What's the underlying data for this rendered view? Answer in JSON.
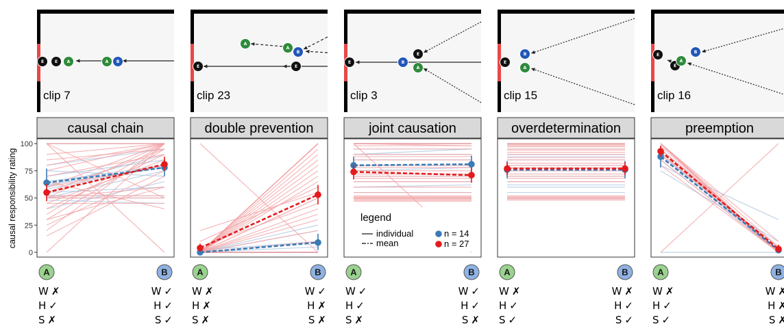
{
  "y_axis_label": "causal responsibility rating",
  "y_ticks": [
    "0",
    "25",
    "50",
    "75",
    "100"
  ],
  "colors": {
    "red": "#e41a1c",
    "red_light": "#f2a0a3",
    "blue": "#3a7bb5",
    "blue_light": "#a9c4e0",
    "ball_green": "#2e8b3a",
    "ball_blue": "#2157b8",
    "badge_green": "#9ad28f",
    "badge_blue": "#8fb2e3",
    "wall_red": "#e84848",
    "strip_bg": "#d9d9d9"
  },
  "legend": {
    "title": "legend",
    "individual": "individual",
    "mean": "mean",
    "n_blue": "n = 14",
    "n_red": "n = 27"
  },
  "panels": [
    {
      "clip": "clip 7",
      "strip": "causal chain",
      "balls": [
        {
          "c": "k",
          "l": "E"
        },
        {
          "c": "k",
          "l": "E"
        },
        {
          "c": "g",
          "l": "A"
        },
        {
          "c": "g",
          "l": "A"
        },
        {
          "c": "b",
          "l": "B"
        }
      ],
      "rows": [
        {
          "a": "W",
          "am": "✗",
          "b": "W",
          "bm": "✓"
        },
        {
          "a": "H",
          "am": "✓",
          "b": "H",
          "bm": "✓"
        },
        {
          "a": "S",
          "am": "✗",
          "b": "S",
          "bm": "✓"
        }
      ]
    },
    {
      "clip": "clip 23",
      "strip": "double prevention",
      "balls": [
        {
          "c": "g",
          "l": "A"
        },
        {
          "c": "g",
          "l": "A"
        },
        {
          "c": "b",
          "l": "B"
        },
        {
          "c": "k",
          "l": "E"
        },
        {
          "c": "k",
          "l": "E"
        }
      ],
      "rows": [
        {
          "a": "W",
          "am": "✗",
          "b": "W",
          "bm": "✓"
        },
        {
          "a": "H",
          "am": "✗",
          "b": "H",
          "bm": "✗"
        },
        {
          "a": "S",
          "am": "✗",
          "b": "S",
          "bm": "✗"
        }
      ]
    },
    {
      "clip": "clip 3",
      "strip": "joint causation",
      "balls": [
        {
          "c": "k",
          "l": "E"
        },
        {
          "c": "k",
          "l": "E"
        },
        {
          "c": "g",
          "l": "A"
        },
        {
          "c": "b",
          "l": "B"
        }
      ],
      "rows": [
        {
          "a": "W",
          "am": "✓",
          "b": "W",
          "bm": "✓"
        },
        {
          "a": "H",
          "am": "✓",
          "b": "H",
          "bm": "✓"
        },
        {
          "a": "S",
          "am": "✗",
          "b": "S",
          "bm": "✗"
        }
      ]
    },
    {
      "clip": "clip 15",
      "strip": "overdetermination",
      "balls": [
        {
          "c": "k",
          "l": "E"
        },
        {
          "c": "b",
          "l": "B"
        },
        {
          "c": "g",
          "l": "A"
        }
      ],
      "rows": [
        {
          "a": "W",
          "am": "✗",
          "b": "W",
          "bm": "✗"
        },
        {
          "a": "H",
          "am": "✓",
          "b": "H",
          "bm": "✓"
        },
        {
          "a": "S",
          "am": "✓",
          "b": "S",
          "bm": "✓"
        }
      ]
    },
    {
      "clip": "clip 16",
      "strip": "preemption",
      "balls": [
        {
          "c": "k",
          "l": "E"
        },
        {
          "c": "k",
          "l": "E"
        },
        {
          "c": "g",
          "l": "A"
        },
        {
          "c": "b",
          "l": "B"
        }
      ],
      "rows": [
        {
          "a": "W",
          "am": "✗",
          "b": "W",
          "bm": "✗"
        },
        {
          "a": "H",
          "am": "✓",
          "b": "H",
          "bm": "✗"
        },
        {
          "a": "S",
          "am": "✓",
          "b": "S",
          "bm": "✗"
        }
      ]
    }
  ],
  "chart_data": {
    "type": "line",
    "ylabel": "causal responsibility rating",
    "ylim": [
      0,
      100
    ],
    "categories": [
      "A",
      "B"
    ],
    "panels": [
      {
        "name": "causal chain",
        "series": [
          {
            "name": "n = 14",
            "mean": [
              64,
              78
            ],
            "ci": [
              [
                52,
                77
              ],
              [
                70,
                86
              ]
            ]
          },
          {
            "name": "n = 27",
            "mean": [
              55,
              81
            ],
            "ci": [
              [
                47,
                63
              ],
              [
                75,
                88
              ]
            ]
          }
        ],
        "individual_blue": [
          [
            100,
            100
          ],
          [
            65,
            80
          ],
          [
            62,
            78
          ],
          [
            50,
            75
          ],
          [
            55,
            60
          ],
          [
            70,
            85
          ],
          [
            48,
            45
          ],
          [
            52,
            52
          ],
          [
            75,
            70
          ],
          [
            60,
            90
          ],
          [
            40,
            65
          ],
          [
            58,
            80
          ],
          [
            50,
            50
          ],
          [
            80,
            95
          ]
        ],
        "individual_red": [
          [
            100,
            100
          ],
          [
            100,
            100
          ],
          [
            20,
            100
          ],
          [
            50,
            50
          ],
          [
            100,
            0
          ],
          [
            0,
            100
          ],
          [
            30,
            95
          ],
          [
            45,
            85
          ],
          [
            60,
            100
          ],
          [
            70,
            90
          ],
          [
            50,
            60
          ],
          [
            25,
            75
          ],
          [
            55,
            95
          ],
          [
            40,
            90
          ],
          [
            80,
            100
          ],
          [
            90,
            100
          ],
          [
            65,
            40
          ],
          [
            35,
            100
          ],
          [
            15,
            70
          ],
          [
            75,
            100
          ],
          [
            50,
            100
          ],
          [
            60,
            80
          ],
          [
            45,
            45
          ],
          [
            30,
            60
          ],
          [
            85,
            95
          ],
          [
            52,
            52
          ],
          [
            100,
            50
          ]
        ]
      },
      {
        "name": "double prevention",
        "series": [
          {
            "name": "n = 14",
            "mean": [
              0,
              9
            ],
            "ci": [
              [
                0,
                2
              ],
              [
                2,
                17
              ]
            ]
          },
          {
            "name": "n = 27",
            "mean": [
              4,
              53
            ],
            "ci": [
              [
                1,
                8
              ],
              [
                44,
                62
              ]
            ]
          }
        ],
        "individual_blue": [
          [
            0,
            0
          ],
          [
            0,
            0
          ],
          [
            0,
            0
          ],
          [
            0,
            0
          ],
          [
            0,
            25
          ],
          [
            0,
            0
          ],
          [
            0,
            0
          ],
          [
            2,
            10
          ],
          [
            0,
            0
          ],
          [
            0,
            0
          ],
          [
            0,
            5
          ],
          [
            0,
            0
          ],
          [
            0,
            20
          ],
          [
            0,
            0
          ]
        ],
        "individual_red": [
          [
            0,
            100
          ],
          [
            0,
            100
          ],
          [
            0,
            100
          ],
          [
            0,
            100
          ],
          [
            0,
            90
          ],
          [
            0,
            80
          ],
          [
            0,
            75
          ],
          [
            0,
            70
          ],
          [
            10,
            60
          ],
          [
            0,
            50
          ],
          [
            0,
            50
          ],
          [
            5,
            45
          ],
          [
            0,
            40
          ],
          [
            0,
            30
          ],
          [
            0,
            0
          ],
          [
            0,
            0
          ],
          [
            0,
            0
          ],
          [
            100,
            0
          ],
          [
            0,
            85
          ],
          [
            0,
            65
          ],
          [
            20,
            55
          ],
          [
            0,
            95
          ],
          [
            0,
            10
          ],
          [
            0,
            0
          ],
          [
            0,
            20
          ],
          [
            0,
            35
          ],
          [
            0,
            100
          ]
        ]
      },
      {
        "name": "joint causation",
        "series": [
          {
            "name": "n = 14",
            "mean": [
              80,
              81
            ],
            "ci": [
              [
                72,
                88
              ],
              [
                73,
                89
              ]
            ]
          },
          {
            "name": "n = 27",
            "mean": [
              74,
              71
            ],
            "ci": [
              [
                67,
                81
              ],
              [
                64,
                78
              ]
            ]
          }
        ],
        "individual_blue": [
          [
            100,
            100
          ],
          [
            100,
            100
          ],
          [
            95,
            95
          ],
          [
            90,
            90
          ],
          [
            85,
            85
          ],
          [
            80,
            80
          ],
          [
            75,
            78
          ],
          [
            70,
            70
          ],
          [
            65,
            65
          ],
          [
            60,
            62
          ],
          [
            100,
            100
          ],
          [
            90,
            95
          ],
          [
            50,
            50
          ],
          [
            55,
            55
          ]
        ],
        "individual_red": [
          [
            100,
            100
          ],
          [
            100,
            100
          ],
          [
            100,
            100
          ],
          [
            98,
            98
          ],
          [
            95,
            95
          ],
          [
            90,
            90
          ],
          [
            85,
            85
          ],
          [
            80,
            80
          ],
          [
            75,
            75
          ],
          [
            70,
            70
          ],
          [
            65,
            65
          ],
          [
            60,
            60
          ],
          [
            55,
            55
          ],
          [
            50,
            50
          ],
          [
            50,
            50
          ],
          [
            50,
            50
          ],
          [
            49,
            49
          ],
          [
            48,
            48
          ],
          [
            100,
            0
          ],
          [
            52,
            52
          ],
          [
            100,
            98
          ],
          [
            88,
            88
          ],
          [
            78,
            78
          ],
          [
            72,
            72
          ],
          [
            68,
            68
          ],
          [
            51,
            51
          ],
          [
            47,
            47
          ]
        ]
      },
      {
        "name": "overdetermination",
        "series": [
          {
            "name": "n = 14",
            "mean": [
              76,
              76
            ],
            "ci": [
              [
                68,
                84
              ],
              [
                68,
                84
              ]
            ]
          },
          {
            "name": "n = 27",
            "mean": [
              77,
              77
            ],
            "ci": [
              [
                71,
                83
              ],
              [
                71,
                83
              ]
            ]
          }
        ],
        "individual_blue": [
          [
            100,
            100
          ],
          [
            95,
            95
          ],
          [
            90,
            90
          ],
          [
            85,
            85
          ],
          [
            80,
            80
          ],
          [
            75,
            75
          ],
          [
            70,
            70
          ],
          [
            65,
            65
          ],
          [
            60,
            60
          ],
          [
            55,
            55
          ],
          [
            100,
            100
          ],
          [
            88,
            88
          ],
          [
            50,
            50
          ],
          [
            62,
            62
          ]
        ],
        "individual_red": [
          [
            100,
            100
          ],
          [
            100,
            100
          ],
          [
            98,
            98
          ],
          [
            95,
            95
          ],
          [
            92,
            92
          ],
          [
            90,
            90
          ],
          [
            85,
            85
          ],
          [
            82,
            82
          ],
          [
            80,
            80
          ],
          [
            78,
            78
          ],
          [
            75,
            75
          ],
          [
            72,
            72
          ],
          [
            70,
            70
          ],
          [
            68,
            68
          ],
          [
            65,
            65
          ],
          [
            50,
            50
          ],
          [
            50,
            50
          ],
          [
            49,
            49
          ],
          [
            48,
            48
          ],
          [
            100,
            100
          ],
          [
            97,
            97
          ],
          [
            87,
            87
          ],
          [
            77,
            77
          ],
          [
            52,
            52
          ],
          [
            51,
            51
          ],
          [
            99,
            99
          ],
          [
            94,
            94
          ]
        ]
      },
      {
        "name": "preemption",
        "series": [
          {
            "name": "n = 14",
            "mean": [
              88,
              2
            ],
            "ci": [
              [
                78,
                98
              ],
              [
                0,
                5
              ]
            ]
          },
          {
            "name": "n = 27",
            "mean": [
              93,
              3
            ],
            "ci": [
              [
                88,
                98
              ],
              [
                0,
                7
              ]
            ]
          }
        ],
        "individual_blue": [
          [
            100,
            0
          ],
          [
            100,
            0
          ],
          [
            95,
            0
          ],
          [
            90,
            5
          ],
          [
            85,
            0
          ],
          [
            100,
            0
          ],
          [
            80,
            30
          ],
          [
            100,
            0
          ],
          [
            75,
            10
          ],
          [
            0,
            0
          ],
          [
            100,
            0
          ],
          [
            90,
            0
          ],
          [
            95,
            2
          ],
          [
            100,
            0
          ]
        ],
        "individual_red": [
          [
            100,
            0
          ],
          [
            100,
            0
          ],
          [
            100,
            0
          ],
          [
            100,
            0
          ],
          [
            100,
            0
          ],
          [
            98,
            0
          ],
          [
            95,
            2
          ],
          [
            100,
            0
          ],
          [
            90,
            5
          ],
          [
            100,
            0
          ],
          [
            100,
            0
          ],
          [
            85,
            0
          ],
          [
            100,
            0
          ],
          [
            100,
            0
          ],
          [
            0,
            100
          ],
          [
            100,
            0
          ],
          [
            95,
            0
          ],
          [
            100,
            0
          ],
          [
            100,
            0
          ],
          [
            100,
            10
          ],
          [
            92,
            0
          ],
          [
            100,
            0
          ],
          [
            100,
            0
          ],
          [
            80,
            0
          ],
          [
            100,
            0
          ],
          [
            100,
            5
          ],
          [
            100,
            0
          ]
        ]
      }
    ]
  }
}
